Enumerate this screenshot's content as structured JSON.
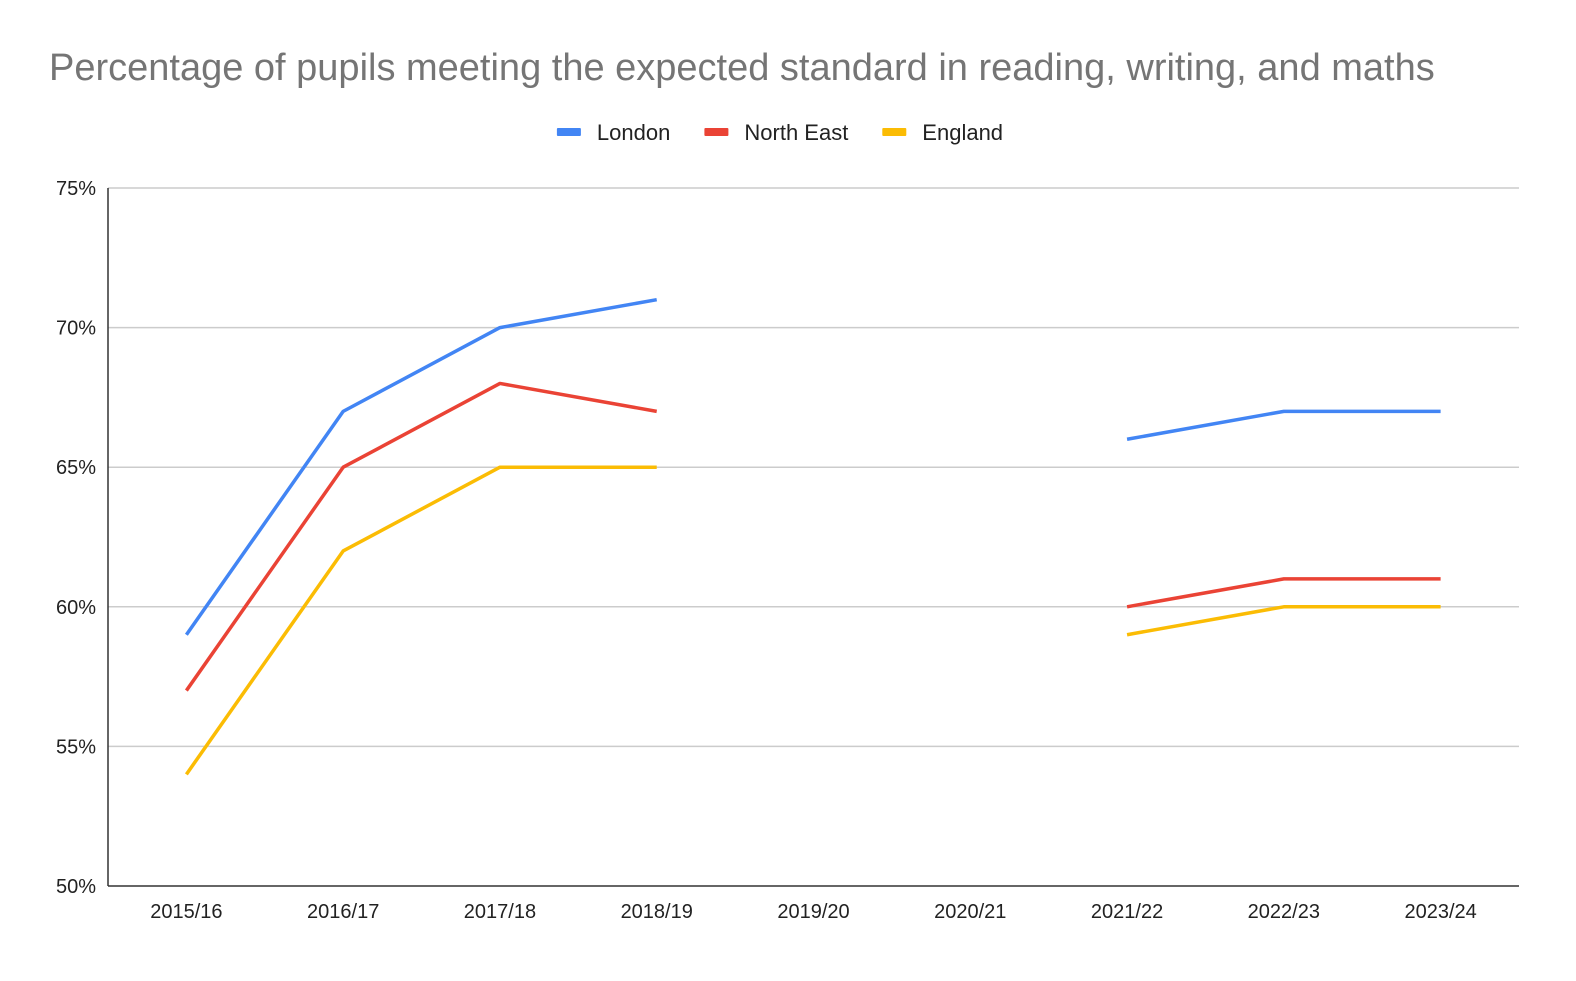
{
  "chart_data": {
    "type": "line",
    "title": "Percentage of pupils meeting the expected standard in reading, writing, and maths",
    "xlabel": "",
    "ylabel": "",
    "categories": [
      "2015/16",
      "2016/17",
      "2017/18",
      "2018/19",
      "2019/20",
      "2020/21",
      "2021/22",
      "2022/23",
      "2023/24"
    ],
    "ylim": [
      50,
      75
    ],
    "y_ticks": [
      50,
      55,
      60,
      65,
      70,
      75
    ],
    "y_tick_labels": [
      "50%",
      "55%",
      "60%",
      "65%",
      "70%",
      "75%"
    ],
    "grid": true,
    "legend_position": "top",
    "series": [
      {
        "name": "London",
        "color": "#4285f4",
        "values": [
          59,
          67,
          70,
          71,
          null,
          null,
          66,
          67,
          67
        ]
      },
      {
        "name": "North East",
        "color": "#ea4335",
        "values": [
          57,
          65,
          68,
          67,
          null,
          null,
          60,
          61,
          61
        ]
      },
      {
        "name": "England",
        "color": "#fbbc04",
        "values": [
          54,
          62,
          65,
          65,
          null,
          null,
          59,
          60,
          60
        ]
      }
    ]
  }
}
